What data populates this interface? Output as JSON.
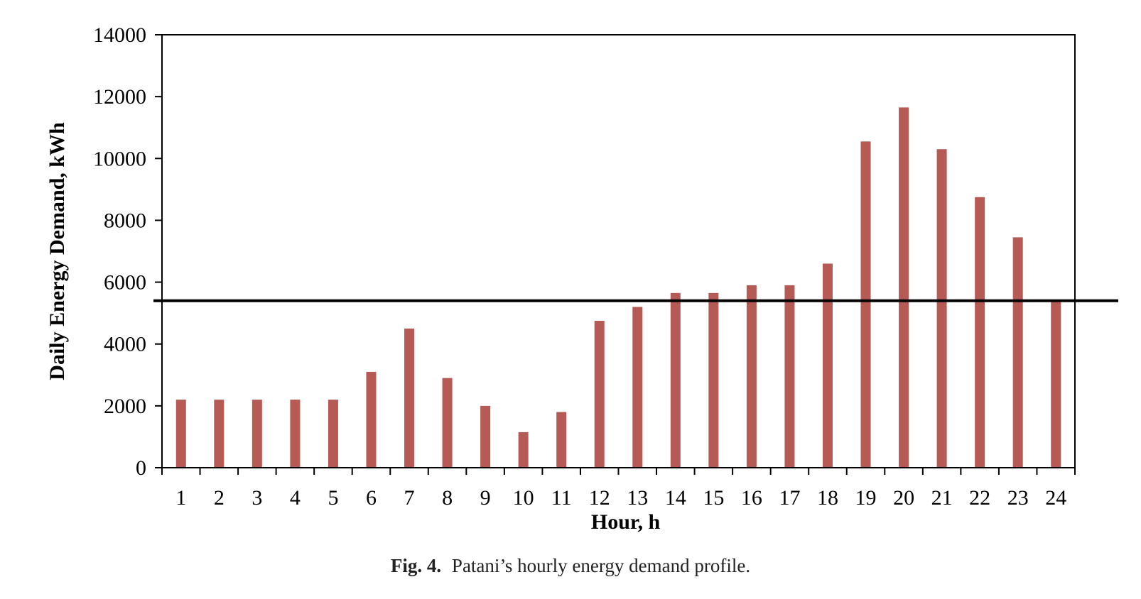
{
  "chart_data": {
    "type": "bar",
    "categories": [
      "1",
      "2",
      "3",
      "4",
      "5",
      "6",
      "7",
      "8",
      "9",
      "10",
      "11",
      "12",
      "13",
      "14",
      "15",
      "16",
      "17",
      "18",
      "19",
      "20",
      "21",
      "22",
      "23",
      "24"
    ],
    "values": [
      2200,
      2200,
      2200,
      2200,
      2200,
      3100,
      4500,
      2900,
      2000,
      1150,
      1800,
      4750,
      5200,
      5650,
      5650,
      5900,
      5900,
      6600,
      10550,
      11650,
      10300,
      8750,
      7450,
      5400
    ],
    "reference_line": 5400,
    "title": "",
    "xlabel": "Hour, h",
    "ylabel": "Daily Energy Demand, kWh",
    "ylim": [
      0,
      14000
    ],
    "yticks": [
      "0",
      "2000",
      "4000",
      "6000",
      "8000",
      "10000",
      "12000",
      "14000"
    ],
    "grid": false,
    "legend": "none",
    "colors": {
      "bar": "#b55a55",
      "line": "#000000",
      "axis": "#000000"
    }
  },
  "caption": {
    "label": "Fig. 4.",
    "text": "Patani’s hourly energy demand profile."
  }
}
